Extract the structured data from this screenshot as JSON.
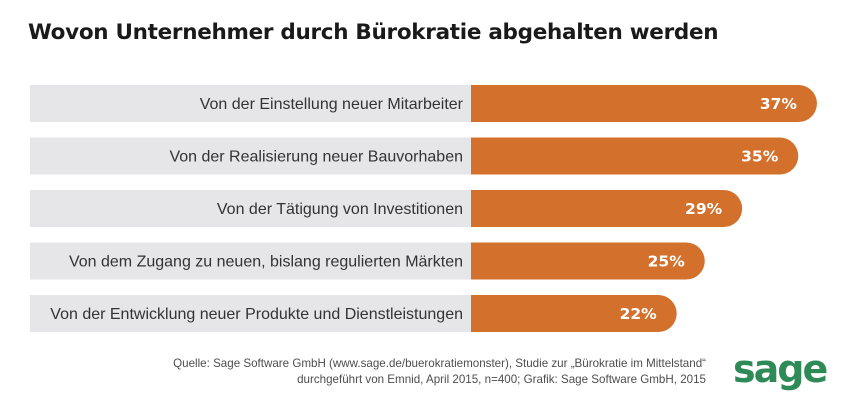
{
  "title": "Wovon Unternehmer durch Bürokratie abgehalten werden",
  "chart_data": {
    "type": "bar",
    "orientation": "horizontal",
    "title": "Wovon Unternehmer durch Bürokratie abgehalten werden",
    "categories": [
      "Von der Einstellung neuer Mitarbeiter",
      "Von der Realisierung neuer Bauvorhaben",
      "Von der Tätigung von Investitionen",
      "Von dem Zugang zu neuen, bislang regulierten Märkten",
      "Von der Entwicklung neuer Produkte und Dienstleistungen"
    ],
    "values": [
      37,
      35,
      29,
      25,
      22
    ],
    "value_labels": [
      "37%",
      "35%",
      "29%",
      "25%",
      "22%"
    ],
    "unit": "%",
    "colors": {
      "bar": "#d2702c",
      "label_background": "#e6e6e8",
      "value_text": "#ffffff",
      "category_text": "#333333"
    },
    "xlabel": "",
    "ylabel": "",
    "grid": false,
    "legend": "none"
  },
  "footer": {
    "line1": "Quelle: Sage Software GmbH (www.sage.de/buerokratiemonster), Studie zur „Bürokratie im Mittelstand“",
    "line2": "durchgeführt von Emnid, April 2015, n=400; Grafik: Sage Software GmbH, 2015"
  },
  "logo": {
    "text": "sage",
    "color": "#2e8b57"
  }
}
